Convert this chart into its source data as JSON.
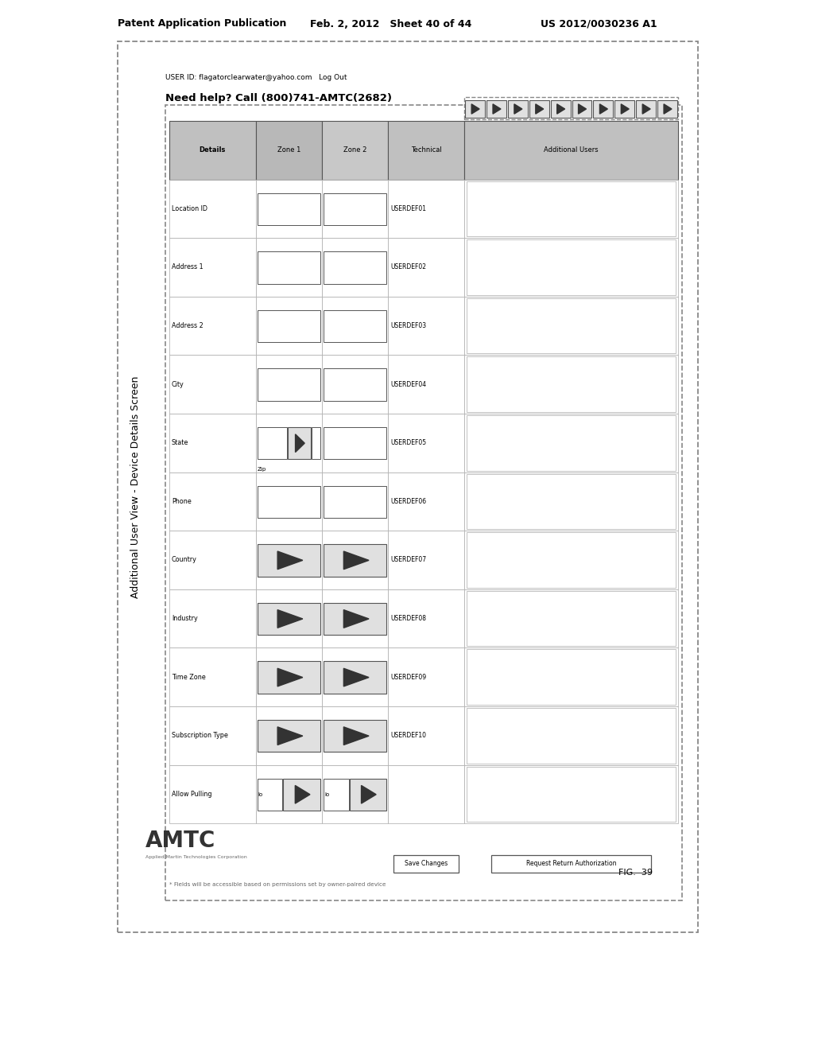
{
  "page_header_left": "Patent Application Publication",
  "page_header_mid": "Feb. 2, 2012   Sheet 40 of 44",
  "page_header_right": "US 2012/0030236 A1",
  "title": "Additional User View - Device Details Screen",
  "company_sub": "Applied Martin Technologies Corporation",
  "user_id_text": "USER ID: flagatorclearwater@yahoo.com   Log Out",
  "help_text": "Need help? Call (800)741-AMTC(2682)",
  "fig_label": "FIG.  39",
  "tab_labels": [
    "Details",
    "Zone 1",
    "Zone 2",
    "Technical",
    "Additional Users"
  ],
  "row_labels": [
    "Location ID",
    "Address 1",
    "Address 2",
    "City",
    "State",
    "Phone",
    "Country",
    "Industry",
    "Time Zone",
    "Subscription Type",
    "Allow Pulling"
  ],
  "userdef_labels": [
    "USERDEF01",
    "USERDEF02",
    "USERDEF03",
    "USERDEF04",
    "USERDEF05",
    "USERDEF06",
    "USERDEF07",
    "USERDEF08",
    "USERDEF09",
    "USERDEF10"
  ],
  "footnote": "* Fields will be accessible based on permissions set by owner-paired device",
  "bg_color": "#ffffff"
}
